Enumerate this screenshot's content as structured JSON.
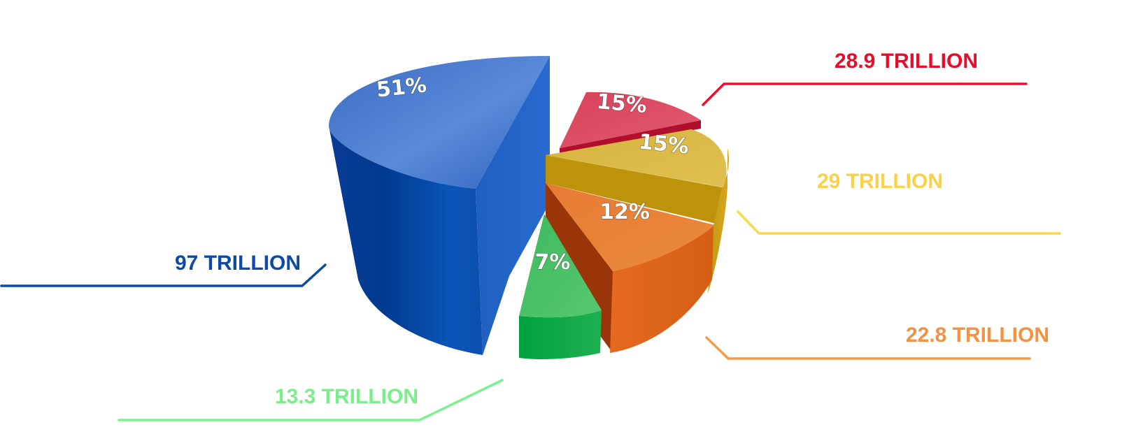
{
  "chart_data": {
    "type": "pie",
    "title": "",
    "slices": [
      {
        "value_label": "97 TRILLION",
        "value": 97,
        "unit": "TRILLION",
        "percent_label": "51%",
        "percent": 51,
        "color": "#1552b0"
      },
      {
        "value_label": "28.9 TRILLION",
        "value": 28.9,
        "unit": "TRILLION",
        "percent_label": "15%",
        "percent": 15,
        "color": "#e8102e"
      },
      {
        "value_label": "29 TRILLION",
        "value": 29,
        "unit": "TRILLION",
        "percent_label": "15%",
        "percent": 15,
        "color": "#f3c842"
      },
      {
        "value_label": "22.8 TRILLION",
        "value": 22.8,
        "unit": "TRILLION",
        "percent_label": "12%",
        "percent": 12,
        "color": "#f08a32"
      },
      {
        "value_label": "13.3 TRILLION",
        "value": 13.3,
        "unit": "TRILLION",
        "percent_label": "7%",
        "percent": 7,
        "color": "#6de383"
      }
    ],
    "legend": "none",
    "style": "3d-exploded-pie-with-callouts"
  },
  "labels": {
    "blue_value": "97 TRILLION",
    "red_value": "28.9 TRILLION",
    "yellow_value": "29 TRILLION",
    "orange_value": "22.8 TRILLION",
    "green_value": "13.3 TRILLION",
    "blue_pct": "51%",
    "red_pct": "15%",
    "yellow_pct": "15%",
    "orange_pct": "12%",
    "green_pct": "7%"
  }
}
